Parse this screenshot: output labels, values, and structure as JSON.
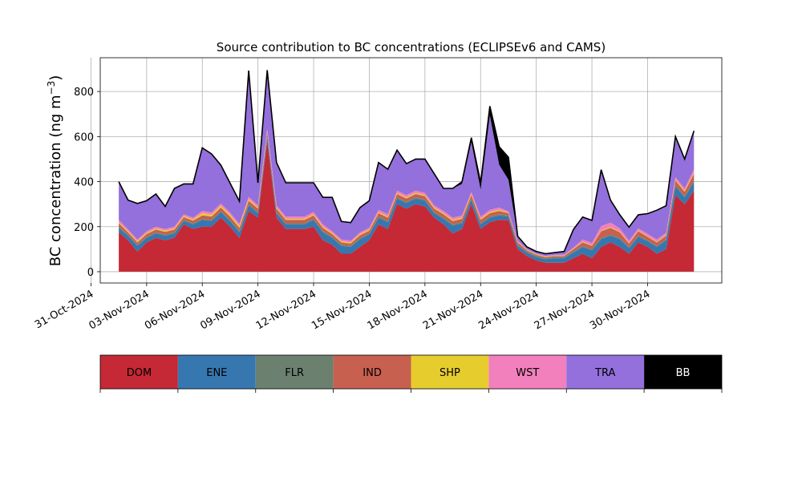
{
  "chart_data": {
    "type": "area",
    "title": "Source contribution to BC concentrations (ECLIPSEv6 and CAMS)",
    "ylabel": "BC concentration (ng m",
    "ylabel_sup": "−3",
    "ylabel_close": ")",
    "xlabel": "",
    "ylim": [
      -50,
      950
    ],
    "xlim": [
      "2024-10-31T12:00",
      "2024-12-04T00:00"
    ],
    "yticks": [
      0,
      200,
      400,
      600,
      800
    ],
    "xticks": [
      "31-Oct-2024",
      "03-Nov-2024",
      "06-Nov-2024",
      "09-Nov-2024",
      "12-Nov-2024",
      "15-Nov-2024",
      "18-Nov-2024",
      "21-Nov-2024",
      "24-Nov-2024",
      "27-Nov-2024",
      "30-Nov-2024"
    ],
    "xtick_dates": [
      "2024-10-31",
      "2024-11-03",
      "2024-11-06",
      "2024-11-09",
      "2024-11-12",
      "2024-11-15",
      "2024-11-18",
      "2024-11-21",
      "2024-11-24",
      "2024-11-27",
      "2024-11-30"
    ],
    "grid": true,
    "x": [
      "2024-11-01T12:00",
      "2024-11-02T00:00",
      "2024-11-02T12:00",
      "2024-11-03T00:00",
      "2024-11-03T12:00",
      "2024-11-04T00:00",
      "2024-11-04T12:00",
      "2024-11-05T00:00",
      "2024-11-05T12:00",
      "2024-11-06T00:00",
      "2024-11-06T12:00",
      "2024-11-07T00:00",
      "2024-11-07T12:00",
      "2024-11-08T00:00",
      "2024-11-08T12:00",
      "2024-11-09T00:00",
      "2024-11-09T12:00",
      "2024-11-10T00:00",
      "2024-11-10T12:00",
      "2024-11-11T00:00",
      "2024-11-11T12:00",
      "2024-11-12T00:00",
      "2024-11-12T12:00",
      "2024-11-13T00:00",
      "2024-11-13T12:00",
      "2024-11-14T00:00",
      "2024-11-14T12:00",
      "2024-11-15T00:00",
      "2024-11-15T12:00",
      "2024-11-16T00:00",
      "2024-11-16T12:00",
      "2024-11-17T00:00",
      "2024-11-17T12:00",
      "2024-11-18T00:00",
      "2024-11-18T12:00",
      "2024-11-19T00:00",
      "2024-11-19T12:00",
      "2024-11-20T00:00",
      "2024-11-20T12:00",
      "2024-11-21T00:00",
      "2024-11-21T12:00",
      "2024-11-22T00:00",
      "2024-11-22T12:00",
      "2024-11-23T00:00",
      "2024-11-23T12:00",
      "2024-11-24T00:00",
      "2024-11-24T12:00",
      "2024-11-25T00:00",
      "2024-11-25T12:00",
      "2024-11-26T00:00",
      "2024-11-26T12:00",
      "2024-11-27T00:00",
      "2024-11-27T12:00",
      "2024-11-28T00:00",
      "2024-11-28T12:00",
      "2024-11-29T00:00",
      "2024-11-29T12:00",
      "2024-11-30T00:00",
      "2024-11-30T12:00",
      "2024-12-01T00:00",
      "2024-12-01T12:00",
      "2024-12-02T00:00",
      "2024-12-02T12:00"
    ],
    "series": [
      {
        "name": "DOM",
        "color": "#c42935",
        "values": [
          175,
          140,
          90,
          130,
          150,
          140,
          150,
          210,
          190,
          200,
          200,
          240,
          200,
          150,
          270,
          240,
          580,
          240,
          190,
          190,
          190,
          200,
          140,
          120,
          80,
          80,
          110,
          140,
          210,
          190,
          300,
          280,
          300,
          290,
          240,
          210,
          170,
          190,
          300,
          190,
          220,
          230,
          230,
          100,
          70,
          50,
          40,
          40,
          40,
          60,
          80,
          60,
          110,
          130,
          110,
          80,
          130,
          110,
          80,
          100,
          340,
          300,
          360
        ]
      },
      {
        "name": "ENE",
        "color": "#3677b0",
        "values": [
          20,
          20,
          25,
          20,
          20,
          20,
          20,
          15,
          20,
          30,
          25,
          25,
          25,
          25,
          25,
          20,
          20,
          20,
          20,
          20,
          20,
          30,
          35,
          30,
          35,
          30,
          35,
          25,
          30,
          30,
          25,
          25,
          25,
          25,
          20,
          25,
          35,
          25,
          20,
          20,
          20,
          20,
          15,
          15,
          15,
          15,
          15,
          20,
          20,
          25,
          30,
          35,
          35,
          30,
          35,
          25,
          25,
          25,
          30,
          40,
          40,
          30,
          40
        ]
      },
      {
        "name": "FLR",
        "color": "#6c8070",
        "values": [
          5,
          5,
          5,
          5,
          5,
          5,
          5,
          5,
          5,
          5,
          5,
          5,
          5,
          5,
          5,
          5,
          5,
          5,
          5,
          5,
          5,
          5,
          5,
          5,
          5,
          5,
          5,
          5,
          5,
          5,
          5,
          5,
          5,
          5,
          5,
          5,
          5,
          5,
          5,
          5,
          5,
          5,
          5,
          5,
          5,
          5,
          5,
          5,
          5,
          5,
          5,
          5,
          5,
          5,
          5,
          5,
          5,
          5,
          5,
          5,
          5,
          5,
          5
        ]
      },
      {
        "name": "IND",
        "color": "#c7604f",
        "values": [
          15,
          10,
          10,
          12,
          12,
          12,
          12,
          12,
          12,
          15,
          15,
          15,
          15,
          15,
          15,
          15,
          15,
          15,
          15,
          15,
          15,
          15,
          15,
          12,
          10,
          10,
          12,
          12,
          15,
          15,
          15,
          15,
          15,
          15,
          15,
          15,
          15,
          15,
          15,
          15,
          15,
          15,
          10,
          10,
          5,
          5,
          5,
          5,
          5,
          10,
          15,
          15,
          30,
          30,
          25,
          15,
          20,
          15,
          15,
          15,
          20,
          20,
          30
        ]
      },
      {
        "name": "SHP",
        "color": "#e7cc2e",
        "values": [
          5,
          5,
          5,
          5,
          5,
          5,
          5,
          5,
          5,
          10,
          8,
          8,
          8,
          8,
          8,
          5,
          5,
          5,
          5,
          5,
          5,
          5,
          5,
          5,
          5,
          5,
          5,
          5,
          5,
          5,
          5,
          5,
          5,
          5,
          5,
          5,
          5,
          5,
          5,
          5,
          5,
          5,
          3,
          3,
          2,
          2,
          2,
          2,
          2,
          2,
          3,
          3,
          3,
          3,
          3,
          3,
          3,
          3,
          3,
          3,
          5,
          5,
          5
        ]
      },
      {
        "name": "WST",
        "color": "#f280bc",
        "values": [
          10,
          8,
          8,
          8,
          8,
          8,
          8,
          8,
          8,
          10,
          10,
          10,
          10,
          10,
          10,
          10,
          10,
          10,
          10,
          10,
          10,
          10,
          10,
          8,
          8,
          8,
          8,
          8,
          10,
          10,
          10,
          10,
          10,
          10,
          10,
          10,
          10,
          10,
          10,
          10,
          10,
          10,
          5,
          5,
          3,
          3,
          3,
          3,
          3,
          5,
          10,
          10,
          20,
          20,
          15,
          10,
          10,
          10,
          10,
          10,
          10,
          10,
          15
        ]
      },
      {
        "name": "TRA",
        "color": "#9370db",
        "values": [
          170,
          130,
          160,
          135,
          145,
          100,
          170,
          135,
          150,
          280,
          260,
          170,
          130,
          100,
          560,
          100,
          260,
          190,
          150,
          150,
          150,
          130,
          120,
          150,
          80,
          80,
          110,
          120,
          210,
          200,
          180,
          140,
          140,
          150,
          140,
          100,
          130,
          140,
          220,
          120,
          420,
          190,
          140,
          20,
          10,
          10,
          10,
          10,
          15,
          80,
          100,
          100,
          250,
          100,
          60,
          60,
          60,
          90,
          130,
          120,
          180,
          130,
          170
        ]
      },
      {
        "name": "BB",
        "color": "#000000",
        "values": [
          0,
          0,
          0,
          0,
          0,
          0,
          0,
          0,
          0,
          0,
          0,
          0,
          0,
          0,
          0,
          0,
          0,
          0,
          0,
          0,
          0,
          0,
          0,
          0,
          0,
          0,
          0,
          0,
          0,
          0,
          0,
          0,
          0,
          0,
          0,
          0,
          0,
          10,
          20,
          30,
          40,
          80,
          100,
          0,
          0,
          0,
          0,
          0,
          0,
          0,
          0,
          0,
          0,
          0,
          0,
          0,
          0,
          0,
          0,
          0,
          0,
          0,
          0
        ]
      }
    ],
    "legend": {
      "placement": "bottom",
      "entries": [
        {
          "label": "DOM",
          "color": "#c42935",
          "text_color": "#000000"
        },
        {
          "label": "ENE",
          "color": "#3677b0",
          "text_color": "#000000"
        },
        {
          "label": "FLR",
          "color": "#6c8070",
          "text_color": "#000000"
        },
        {
          "label": "IND",
          "color": "#c7604f",
          "text_color": "#000000"
        },
        {
          "label": "SHP",
          "color": "#e7cc2e",
          "text_color": "#000000"
        },
        {
          "label": "WST",
          "color": "#f280bc",
          "text_color": "#000000"
        },
        {
          "label": "TRA",
          "color": "#9370db",
          "text_color": "#000000"
        },
        {
          "label": "BB",
          "color": "#000000",
          "text_color": "#ffffff"
        }
      ]
    }
  }
}
